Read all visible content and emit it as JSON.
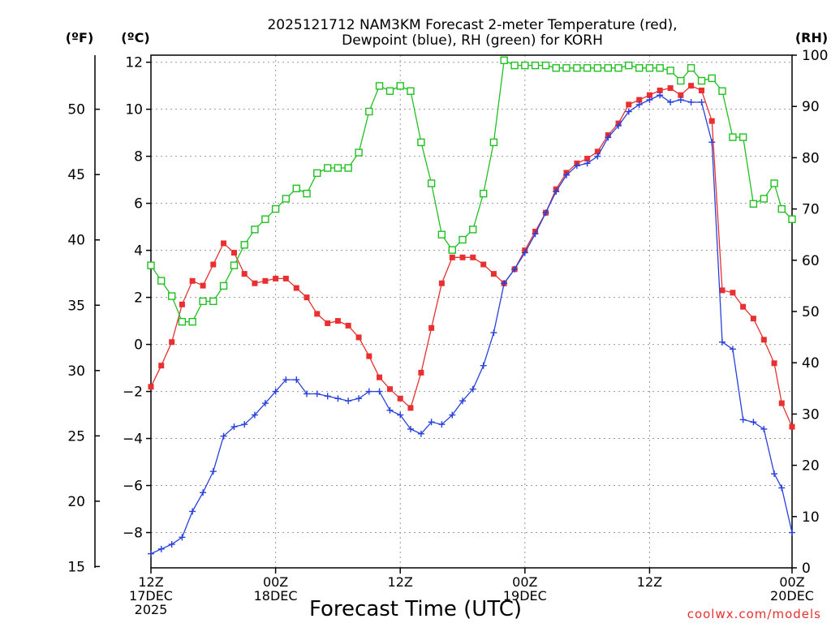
{
  "chart_data": {
    "type": "line",
    "title_lines": [
      "2025121712 NAM3KM Forecast 2-meter Temperature (red),",
      "Dewpoint (blue), RH (green) for KORH"
    ],
    "xlabel": "Forecast Time (UTC)",
    "credit": "coolwx.com/models",
    "left_axis_label": "(ºC)",
    "far_left_axis_label": "(ºF)",
    "right_axis_label": "(RH)",
    "celsius_range": [
      -9.5,
      12.3
    ],
    "celsius_ticks": [
      12,
      10,
      8,
      6,
      4,
      2,
      0,
      -2,
      -4,
      -6,
      -8
    ],
    "fahrenheit_ticks": [
      50,
      45,
      40,
      35,
      30,
      25,
      20,
      15
    ],
    "rh_range": [
      0,
      100
    ],
    "rh_ticks": [
      0,
      10,
      20,
      30,
      40,
      50,
      60,
      70,
      80,
      90,
      100
    ],
    "x_range_hours": [
      0,
      36
    ],
    "x_ticks": [
      {
        "hour": 0,
        "lines": [
          "12Z",
          "17DEC",
          "2025"
        ]
      },
      {
        "hour": 7,
        "lines": [
          "00Z",
          "18DEC"
        ]
      },
      {
        "hour": 14,
        "lines": [
          "12Z"
        ]
      },
      {
        "hour": 21,
        "lines": [
          "00Z",
          "19DEC"
        ]
      },
      {
        "hour": 28,
        "lines": [
          "12Z"
        ]
      },
      {
        "hour": 36,
        "lines": [
          "00Z",
          "20DEC"
        ]
      }
    ],
    "series": [
      {
        "name": "Temperature (°C)",
        "color": "#e83030",
        "marker": "filled-square",
        "x": [
          0,
          0.58,
          1.17,
          1.75,
          2.33,
          2.92,
          3.5,
          4.08,
          4.67,
          5.25,
          5.83,
          6.42,
          7,
          7.58,
          8.17,
          8.75,
          9.33,
          9.92,
          10.5,
          11.08,
          11.67,
          12.25,
          12.83,
          13.42,
          14,
          14.58,
          15.17,
          15.75,
          16.33,
          16.92,
          17.5,
          18.08,
          18.67,
          19.25,
          19.83,
          20.42,
          21,
          21.58,
          22.17,
          22.75,
          23.33,
          23.92,
          24.5,
          25.08,
          25.67,
          26.25,
          26.83,
          27.42,
          28,
          28.58,
          29.17,
          29.75,
          30.33,
          30.92,
          31.5,
          32.08,
          32.67,
          33.25,
          33.83,
          34.42,
          35,
          35.42,
          36
        ],
        "values": [
          -1.8,
          -0.9,
          0.1,
          1.7,
          2.7,
          2.5,
          3.4,
          4.3,
          3.9,
          3.0,
          2.6,
          2.7,
          2.8,
          2.8,
          2.4,
          2.0,
          1.3,
          0.9,
          1.0,
          0.8,
          0.3,
          -0.5,
          -1.4,
          -1.9,
          -2.3,
          -2.7,
          -1.2,
          0.7,
          2.6,
          3.7,
          3.7,
          3.7,
          3.4,
          3.0,
          2.6,
          3.2,
          4.0,
          4.8,
          5.6,
          6.6,
          7.3,
          7.7,
          7.9,
          8.2,
          8.9,
          9.4,
          10.2,
          10.4,
          10.6,
          10.8,
          10.9,
          10.6,
          11.0,
          10.8,
          9.5,
          2.3,
          2.2,
          1.6,
          1.1,
          0.2,
          -0.8,
          -2.5,
          -3.5
        ]
      },
      {
        "name": "Dewpoint (°C)",
        "color": "#2840dc",
        "marker": "plus",
        "x": [
          0,
          0.58,
          1.17,
          1.75,
          2.33,
          2.92,
          3.5,
          4.08,
          4.67,
          5.25,
          5.83,
          6.42,
          7,
          7.58,
          8.17,
          8.75,
          9.33,
          9.92,
          10.5,
          11.08,
          11.67,
          12.25,
          12.83,
          13.42,
          14,
          14.58,
          15.17,
          15.75,
          16.33,
          16.92,
          17.5,
          18.08,
          18.67,
          19.25,
          19.83,
          20.42,
          21,
          21.58,
          22.17,
          22.75,
          23.33,
          23.92,
          24.5,
          25.08,
          25.67,
          26.25,
          26.83,
          27.42,
          28,
          28.58,
          29.17,
          29.75,
          30.33,
          30.92,
          31.5,
          32.08,
          32.67,
          33.25,
          33.83,
          34.42,
          35,
          35.42,
          36
        ],
        "values": [
          -8.9,
          -8.7,
          -8.5,
          -8.2,
          -7.1,
          -6.3,
          -5.4,
          -3.9,
          -3.5,
          -3.4,
          -3.0,
          -2.5,
          -2.0,
          -1.5,
          -1.5,
          -2.1,
          -2.1,
          -2.2,
          -2.3,
          -2.4,
          -2.3,
          -2.0,
          -2.0,
          -2.8,
          -3.0,
          -3.6,
          -3.8,
          -3.3,
          -3.4,
          -3.0,
          -2.4,
          -1.9,
          -0.9,
          0.5,
          2.6,
          3.2,
          3.9,
          4.7,
          5.6,
          6.5,
          7.2,
          7.6,
          7.7,
          8.0,
          8.8,
          9.3,
          9.9,
          10.2,
          10.4,
          10.6,
          10.3,
          10.4,
          10.3,
          10.3,
          8.6,
          0.1,
          -0.2,
          -3.2,
          -3.3,
          -3.6,
          -5.5,
          -6.1,
          -8.0
        ]
      },
      {
        "name": "RH (%)",
        "color": "#20c020",
        "marker": "open-square",
        "x": [
          0,
          0.58,
          1.17,
          1.75,
          2.33,
          2.92,
          3.5,
          4.08,
          4.67,
          5.25,
          5.83,
          6.42,
          7,
          7.58,
          8.17,
          8.75,
          9.33,
          9.92,
          10.5,
          11.08,
          11.67,
          12.25,
          12.83,
          13.42,
          14,
          14.58,
          15.17,
          15.75,
          16.33,
          16.92,
          17.5,
          18.08,
          18.67,
          19.25,
          19.83,
          20.42,
          21,
          21.58,
          22.17,
          22.75,
          23.33,
          23.92,
          24.5,
          25.08,
          25.67,
          26.25,
          26.83,
          27.42,
          28,
          28.58,
          29.17,
          29.75,
          30.33,
          30.92,
          31.5,
          32.08,
          32.67,
          33.25,
          33.83,
          34.42,
          35,
          35.42,
          36
        ],
        "values": [
          59,
          56,
          53,
          48,
          48,
          52,
          52,
          55,
          59,
          63,
          66,
          68,
          70,
          72,
          74,
          73,
          77,
          78,
          78,
          78,
          81,
          89,
          94,
          93,
          94,
          93,
          83,
          75,
          65,
          62,
          64,
          66,
          73,
          83,
          99,
          98,
          98,
          98,
          98,
          97.5,
          97.5,
          97.5,
          97.5,
          97.5,
          97.5,
          97.5,
          98,
          97.5,
          97.5,
          97.5,
          97,
          95,
          97.5,
          95,
          95.5,
          93,
          84,
          84,
          71,
          72,
          75,
          70,
          68
        ]
      }
    ]
  }
}
